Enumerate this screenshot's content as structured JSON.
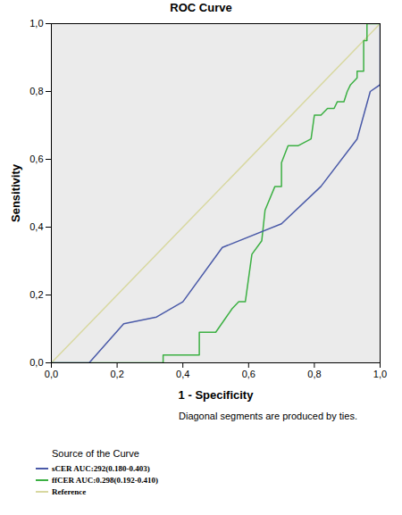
{
  "chart_data": {
    "type": "line",
    "title": "ROC Curve",
    "x_label": "1 - Specificity",
    "y_label": "Sensitivity",
    "annotations": [
      "Diagonal segments are produced by ties."
    ],
    "legend_title": "Source of the Curve",
    "legend": "bottom",
    "grid": false,
    "xlim": [
      0,
      1
    ],
    "ylim": [
      0,
      1
    ],
    "xticks": [
      {
        "value": 0,
        "label": "0,0"
      },
      {
        "value": 0.2,
        "label": "0,2"
      },
      {
        "value": 0.4,
        "label": "0,4"
      },
      {
        "value": 0.6,
        "label": "0,6"
      },
      {
        "value": 0.8,
        "label": "0,8"
      },
      {
        "value": 1,
        "label": "1,0"
      }
    ],
    "yticks": [
      {
        "value": 0,
        "label": "0,0"
      },
      {
        "value": 0.2,
        "label": "0,2"
      },
      {
        "value": 0.4,
        "label": "0,4"
      },
      {
        "value": 0.6,
        "label": "0,6"
      },
      {
        "value": 0.8,
        "label": "0,8"
      },
      {
        "value": 1,
        "label": "1,0"
      }
    ],
    "series": [
      {
        "name": "sCER  AUC:292(0.180-0.403)",
        "color": "#4a5aa8",
        "x": [
          0,
          0.115,
          0.22,
          0.32,
          0.4,
          0.52,
          0.7,
          0.82,
          0.93,
          0.97,
          1.0,
          1.0
        ],
        "values": [
          0,
          0,
          0.115,
          0.135,
          0.18,
          0.34,
          0.41,
          0.52,
          0.66,
          0.8,
          0.82,
          1.0
        ]
      },
      {
        "name": "ffCER AUC:0.298(0.192-0.410)",
        "color": "#3cb043",
        "x": [
          0,
          0.34,
          0.34,
          0.45,
          0.45,
          0.5,
          0.55,
          0.57,
          0.59,
          0.61,
          0.64,
          0.65,
          0.68,
          0.7,
          0.7,
          0.72,
          0.75,
          0.79,
          0.8,
          0.82,
          0.84,
          0.86,
          0.87,
          0.89,
          0.9,
          0.91,
          0.93,
          0.93,
          0.95,
          0.95,
          0.96,
          0.96,
          1.0
        ],
        "values": [
          0,
          0,
          0.023,
          0.023,
          0.09,
          0.09,
          0.16,
          0.18,
          0.18,
          0.32,
          0.36,
          0.45,
          0.52,
          0.52,
          0.59,
          0.64,
          0.64,
          0.66,
          0.73,
          0.73,
          0.75,
          0.75,
          0.77,
          0.77,
          0.8,
          0.82,
          0.84,
          0.86,
          0.86,
          0.95,
          0.95,
          1.0,
          1.0
        ]
      },
      {
        "name": "Reference",
        "color": "#d8d8a0",
        "x": [
          0,
          1
        ],
        "values": [
          0,
          1
        ]
      }
    ]
  }
}
